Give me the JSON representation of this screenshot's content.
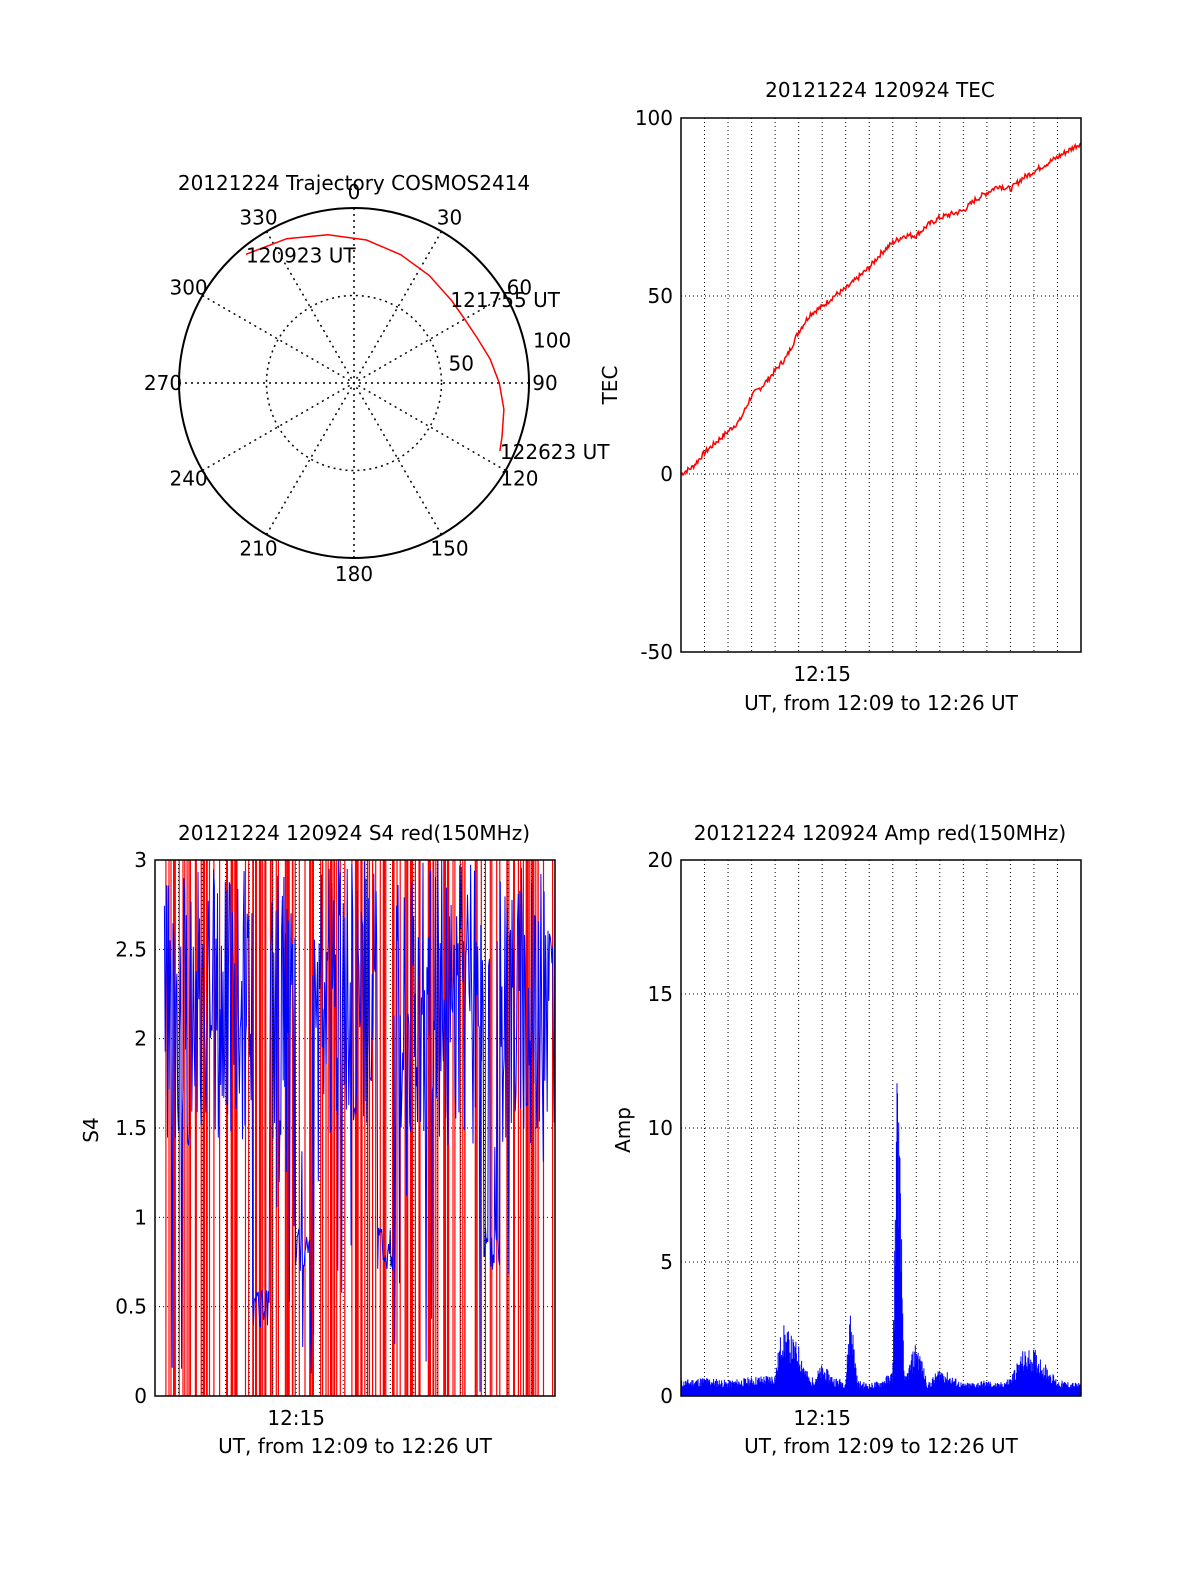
{
  "chart_data": [
    {
      "type": "polar",
      "title": "20121224 Trajectory COSMOS2414",
      "angle_labels": [
        "0",
        "30",
        "60",
        "90",
        "120",
        "150",
        "180",
        "210",
        "240",
        "270",
        "300",
        "330"
      ],
      "radius_labels": [
        "50",
        "100"
      ],
      "radius_range": [
        0,
        100
      ],
      "track": {
        "color": "#ff0000",
        "points": [
          {
            "az": 320,
            "r": 96
          },
          {
            "az": 335,
            "r": 91
          },
          {
            "az": 350,
            "r": 86
          },
          {
            "az": 5,
            "r": 82
          },
          {
            "az": 20,
            "r": 78
          },
          {
            "az": 35,
            "r": 75
          },
          {
            "az": 50,
            "r": 73
          },
          {
            "az": 60,
            "r": 73
          },
          {
            "az": 70,
            "r": 75
          },
          {
            "az": 80,
            "r": 79
          },
          {
            "az": 90,
            "r": 83
          },
          {
            "az": 100,
            "r": 87
          },
          {
            "az": 110,
            "r": 90
          },
          {
            "az": 115,
            "r": 92
          }
        ]
      },
      "annotations": [
        {
          "text": "120923 UT",
          "az": 320,
          "r": 96
        },
        {
          "text": "121755 UT",
          "az": 49,
          "r": 73
        },
        {
          "text": "122623 UT",
          "az": 115,
          "r": 92
        }
      ]
    },
    {
      "type": "line",
      "title": "20121224 120924 TEC",
      "xlabel": "UT, from 12:09 to 12:26 UT",
      "ylabel": "TEC",
      "xlim": [
        0,
        17
      ],
      "ylim": [
        -50,
        100
      ],
      "yticks": [
        -50,
        0,
        50,
        100
      ],
      "xticks": [
        {
          "x": 6,
          "label": "12:15"
        }
      ],
      "grid": true,
      "series": [
        {
          "color": "#ff0000",
          "x": [
            0,
            0.5,
            1,
            1.5,
            2,
            2.5,
            3,
            3.5,
            4,
            4.5,
            5,
            5.5,
            6,
            6.5,
            7,
            7.5,
            8,
            8.5,
            9,
            9.5,
            10,
            10.5,
            11,
            11.5,
            12,
            12.5,
            13,
            13.5,
            14,
            14.5,
            15,
            15.5,
            16,
            16.5,
            17
          ],
          "y": [
            0,
            2,
            6,
            9,
            12,
            15,
            22,
            25,
            29,
            33,
            40,
            45,
            47,
            50,
            52,
            55,
            58,
            62,
            65,
            67,
            67,
            70,
            72,
            73,
            74,
            77,
            79,
            81,
            80,
            83,
            85,
            87,
            89,
            91,
            93
          ]
        }
      ]
    },
    {
      "type": "line",
      "title": "20121224 120924 S4 red(150MHz)",
      "xlabel": "UT, from 12:09 to 12:26 UT",
      "ylabel": "S4",
      "xlim": [
        0,
        17
      ],
      "ylim": [
        0,
        3
      ],
      "yticks": [
        "0",
        "0.5",
        "1",
        "1.5",
        "2",
        "2.5",
        "3"
      ],
      "xticks": [
        {
          "x": 6,
          "label": "12:15"
        }
      ],
      "grid": true,
      "series": [
        {
          "color": "#ff0000",
          "note_values": "red vertical spikes 0 to 3 densely throughout"
        },
        {
          "color": "#0000ff"
        }
      ]
    },
    {
      "type": "line",
      "title": "20121224 120924 Amp red(150MHz)",
      "xlabel": "UT, from 12:09 to 12:26 UT",
      "ylabel": "Amp",
      "xlim": [
        0,
        17
      ],
      "ylim": [
        0,
        20
      ],
      "yticks": [
        0,
        5,
        10,
        15,
        20
      ],
      "xticks": [
        {
          "x": 6,
          "label": "12:15"
        }
      ],
      "grid": true,
      "series": [
        {
          "color": "#0000ff",
          "x": [
            0,
            1,
            2,
            3,
            4,
            4.3,
            4.6,
            5,
            5.5,
            6,
            6.5,
            7,
            7.2,
            7.5,
            8,
            8.5,
            9,
            9.2,
            9.5,
            10,
            10.5,
            11,
            12,
            13,
            13.5,
            14,
            14.5,
            15,
            15.5,
            16,
            17
          ],
          "y": [
            0.5,
            0.6,
            0.5,
            0.6,
            0.7,
            2.3,
            2.0,
            1.6,
            0.5,
            1.0,
            0.6,
            0.5,
            3.0,
            0.5,
            0.4,
            0.5,
            0.8,
            11.3,
            0.5,
            1.8,
            0.4,
            0.9,
            0.4,
            0.5,
            0.4,
            0.6,
            1.4,
            1.5,
            1.0,
            0.5,
            0.4
          ]
        }
      ]
    }
  ]
}
